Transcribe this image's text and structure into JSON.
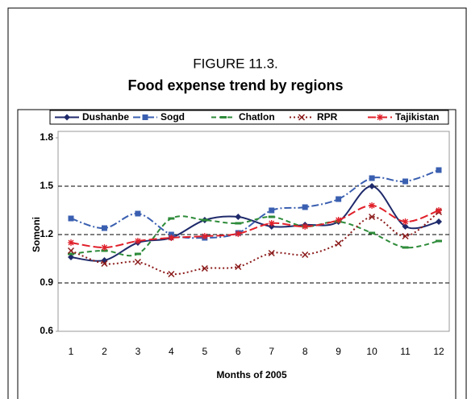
{
  "chart_data": {
    "type": "line",
    "figure_label": "FIGURE 11.3.",
    "title": "Food expense trend by regions",
    "x_label": "Months of 2005",
    "y_label": "Somoni",
    "x": [
      1,
      2,
      3,
      4,
      5,
      6,
      7,
      8,
      9,
      10,
      11,
      12
    ],
    "xlim": [
      1,
      12
    ],
    "ylim": [
      0.6,
      1.8
    ],
    "yticks": [
      0.6,
      0.9,
      1.2,
      1.5,
      1.8
    ],
    "grid": true,
    "legend": "top",
    "series": [
      {
        "name": "Dushanbe",
        "color": "#1f2a6b",
        "values": [
          1.06,
          1.04,
          1.15,
          1.18,
          1.29,
          1.31,
          1.25,
          1.26,
          1.28,
          1.5,
          1.25,
          1.28
        ]
      },
      {
        "name": "Sogd",
        "color": "#3a5fb0",
        "values": [
          1.3,
          1.24,
          1.33,
          1.2,
          1.18,
          1.21,
          1.35,
          1.37,
          1.42,
          1.55,
          1.53,
          1.6
        ]
      },
      {
        "name": "Chatlon",
        "color": "#2e8b3a",
        "values": [
          1.08,
          1.1,
          1.08,
          1.3,
          1.29,
          1.27,
          1.31,
          1.25,
          1.28,
          1.21,
          1.12,
          1.16
        ]
      },
      {
        "name": "RPR",
        "color": "#8b1a1a",
        "values": [
          1.1,
          1.02,
          1.03,
          0.955,
          0.99,
          1.0,
          1.085,
          1.075,
          1.145,
          1.31,
          1.19,
          1.34
        ]
      },
      {
        "name": "Tajikistan",
        "color": "#e0202a",
        "values": [
          1.15,
          1.12,
          1.16,
          1.18,
          1.19,
          1.205,
          1.27,
          1.25,
          1.29,
          1.38,
          1.28,
          1.35
        ]
      }
    ]
  }
}
